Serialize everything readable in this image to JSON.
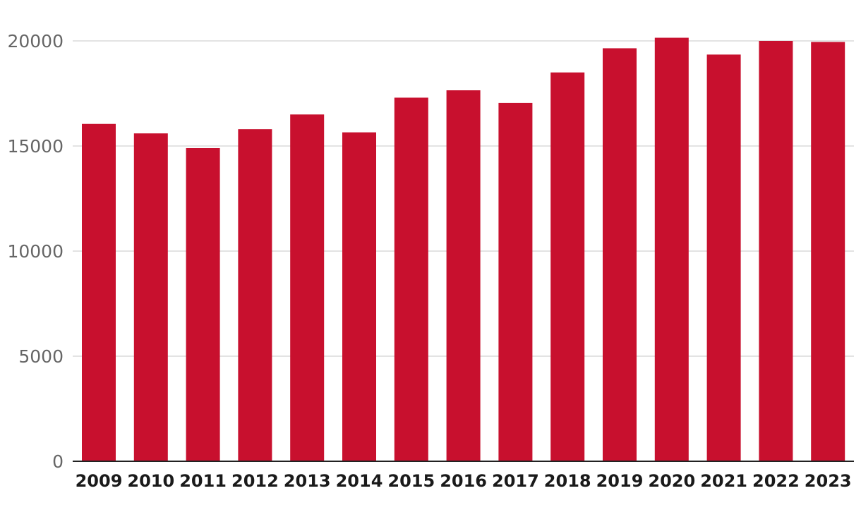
{
  "chart_data": {
    "type": "bar",
    "title": "",
    "xlabel": "",
    "ylabel": "",
    "categories": [
      "2009",
      "2010",
      "2011",
      "2012",
      "2013",
      "2014",
      "2015",
      "2016",
      "2017",
      "2018",
      "2019",
      "2020",
      "2021",
      "2022",
      "2023"
    ],
    "values": [
      16050,
      15600,
      14900,
      15800,
      16500,
      15650,
      17300,
      17650,
      17050,
      18500,
      19650,
      20150,
      19350,
      20000,
      19950
    ],
    "ylim": [
      0,
      20000
    ],
    "yticks": [
      0,
      5000,
      10000,
      15000,
      20000
    ],
    "ytick_labels": [
      "0",
      "5000",
      "10000",
      "15000",
      "20000"
    ],
    "grid": true,
    "legend": "none",
    "bar_color": "#c8102e"
  }
}
